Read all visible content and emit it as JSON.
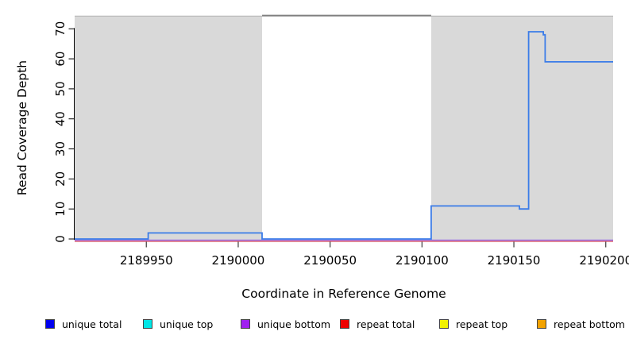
{
  "chart_data": {
    "type": "line",
    "title": "",
    "xlabel": "Coordinate in Reference Genome",
    "ylabel": "Read Coverage Depth",
    "xlim": [
      2189911,
      2190204
    ],
    "ylim": [
      0,
      74.3
    ],
    "x_ticks": [
      2189950,
      2190000,
      2190050,
      2190100,
      2190150,
      2190200
    ],
    "y_ticks": [
      0,
      10,
      20,
      30,
      40,
      50,
      60,
      70
    ],
    "grid": false,
    "legend_position": "bottom",
    "regions": [
      {
        "name": "shaded-left",
        "x0": 2189911,
        "x1": 2190013,
        "color": "#d9d9d9"
      },
      {
        "name": "unshaded-middle",
        "x0": 2190013,
        "x1": 2190105,
        "color": "#ffffff"
      },
      {
        "name": "shaded-right",
        "x0": 2190105,
        "x1": 2190204,
        "color": "#d9d9d9"
      }
    ],
    "top_marker": {
      "x0": 2190013,
      "x1": 2190105,
      "color": "#7f7f7f"
    },
    "series": [
      {
        "name": "unique total",
        "line_color": "#3b7ce8",
        "steps": [
          [
            2189911,
            0
          ],
          [
            2189951,
            0
          ],
          [
            2189951,
            2
          ],
          [
            2190013,
            2
          ],
          [
            2190013,
            0
          ],
          [
            2190105,
            0
          ],
          [
            2190105,
            11
          ],
          [
            2190153,
            11
          ],
          [
            2190153,
            10
          ],
          [
            2190158,
            10
          ],
          [
            2190158,
            69
          ],
          [
            2190166,
            69
          ],
          [
            2190166,
            68
          ],
          [
            2190167,
            68
          ],
          [
            2190167,
            59
          ],
          [
            2190204,
            59
          ]
        ]
      },
      {
        "name": "unique bottom",
        "line_color": "#9a70e8",
        "constant": 0,
        "span": [
          2189911,
          2190204
        ]
      },
      {
        "name": "repeat total",
        "line_color": "#d44a60",
        "constant": 0,
        "span": [
          2189911,
          2190204
        ]
      }
    ],
    "legend": [
      {
        "label": "unique total",
        "color": "#0000ee"
      },
      {
        "label": "unique top",
        "color": "#00e6e6"
      },
      {
        "label": "unique bottom",
        "color": "#a020f0"
      },
      {
        "label": "repeat total",
        "color": "#ee0000"
      },
      {
        "label": "repeat top",
        "color": "#f2f200"
      },
      {
        "label": "repeat bottom",
        "color": "#f2a200"
      }
    ]
  }
}
